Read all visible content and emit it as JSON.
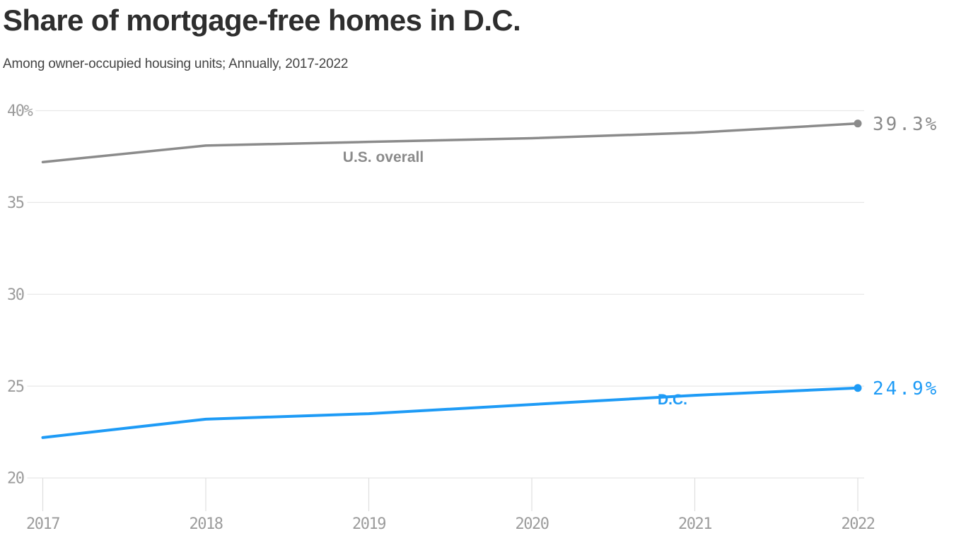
{
  "header": {
    "title": "Share of mortgage-free homes in D.C.",
    "subtitle": "Among owner-occupied housing units; Annually, 2017-2022"
  },
  "chart_data": {
    "type": "line",
    "title": "Share of mortgage-free homes in D.C.",
    "subtitle": "Among owner-occupied housing units; Annually, 2017-2022",
    "x": [
      2017,
      2018,
      2019,
      2020,
      2021,
      2022
    ],
    "x_tick_labels": [
      "2017",
      "2018",
      "2019",
      "2020",
      "2021",
      "2022"
    ],
    "series": [
      {
        "name": "U.S. overall",
        "values": [
          37.2,
          38.1,
          38.3,
          38.5,
          38.8,
          39.3
        ],
        "color": "#8b8b8b",
        "end_label": "39.3%"
      },
      {
        "name": "D.C.",
        "values": [
          22.2,
          23.2,
          23.5,
          24.0,
          24.5,
          24.9
        ],
        "color": "#1e9bf6",
        "end_label": "24.9%"
      }
    ],
    "y_ticks": [
      20,
      25,
      30,
      35,
      40
    ],
    "y_tick_labels": [
      "20",
      "25",
      "30",
      "35",
      "40%"
    ],
    "ylim": [
      19.9,
      41.5
    ],
    "xlabel": "",
    "ylabel": "",
    "grid": "horizontal-gridlines",
    "legend": "inline-series-labels"
  },
  "colors": {
    "title": "#2e2e2e",
    "subtitle": "#444444",
    "tick_label": "#9c9c9c",
    "gridline": "#e8e8e8",
    "tick_mark": "#dedede",
    "us_overall": "#8b8b8b",
    "dc": "#1e9bf6"
  }
}
